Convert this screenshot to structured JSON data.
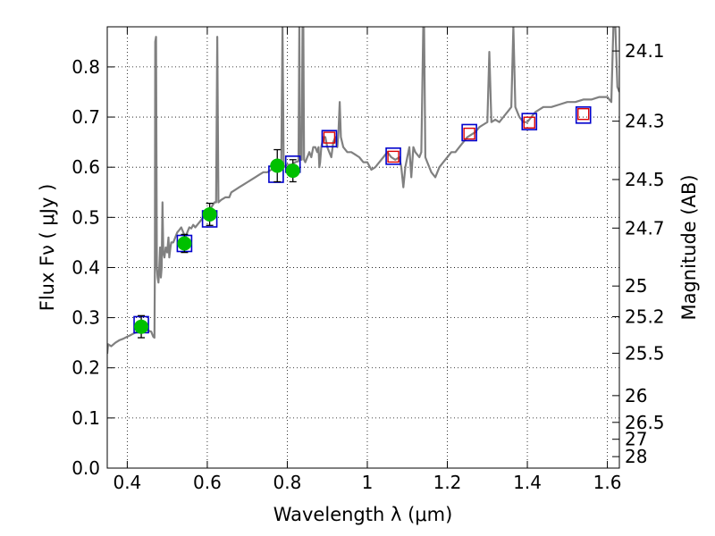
{
  "chart_data": {
    "type": "scatter",
    "xlabel": "Wavelength  λ (μm)",
    "ylabel": "Flux  Fν  ( μJy )",
    "y2label": "Magnitude (AB)",
    "xlim": [
      0.35,
      1.63
    ],
    "ylim": [
      0.0,
      0.88
    ],
    "grid": true,
    "x_ticks": [
      0.4,
      0.6,
      0.8,
      1.0,
      1.2,
      1.4,
      1.6
    ],
    "x_tick_labels": [
      "0.4",
      "0.6",
      "0.8",
      "1",
      "1.2",
      "1.4",
      "1.6"
    ],
    "y_ticks": [
      0.0,
      0.1,
      0.2,
      0.3,
      0.4,
      0.5,
      0.6,
      0.7,
      0.8
    ],
    "y_tick_labels": [
      "0.0",
      "0.1",
      "0.2",
      "0.3",
      "0.4",
      "0.5",
      "0.6",
      "0.7",
      "0.8"
    ],
    "mag_ticks": [
      24.1,
      24.3,
      24.5,
      24.7,
      25,
      25.2,
      25.5,
      26,
      26.5,
      27,
      28
    ],
    "mag_tick_labels": [
      "24.1",
      "24.3",
      "24.5",
      "24.7",
      "25",
      "25.2",
      "25.5",
      "26",
      "26.5",
      "27",
      "28"
    ],
    "colors": {
      "model": "#808080",
      "observed": "#00c000",
      "model_photometry": "#0000cc",
      "predicted": "#dd0000",
      "errorbar": "#000000"
    },
    "observed": [
      {
        "x": 0.435,
        "y": 0.282,
        "err": 0.022
      },
      {
        "x": 0.543,
        "y": 0.448,
        "err": 0.018
      },
      {
        "x": 0.606,
        "y": 0.506,
        "err": 0.022
      },
      {
        "x": 0.775,
        "y": 0.603,
        "err": 0.032
      },
      {
        "x": 0.814,
        "y": 0.593,
        "err": 0.022
      }
    ],
    "model_photometry": [
      {
        "x": 0.435,
        "y": 0.286
      },
      {
        "x": 0.543,
        "y": 0.448
      },
      {
        "x": 0.606,
        "y": 0.497
      },
      {
        "x": 0.772,
        "y": 0.586
      },
      {
        "x": 0.814,
        "y": 0.606
      },
      {
        "x": 0.905,
        "y": 0.657
      },
      {
        "x": 1.065,
        "y": 0.622
      },
      {
        "x": 1.255,
        "y": 0.669
      },
      {
        "x": 1.405,
        "y": 0.691
      },
      {
        "x": 1.54,
        "y": 0.704
      }
    ],
    "predicted": [
      {
        "x": 0.905,
        "y": 0.659
      },
      {
        "x": 1.065,
        "y": 0.621
      },
      {
        "x": 1.255,
        "y": 0.667
      },
      {
        "x": 1.405,
        "y": 0.689
      },
      {
        "x": 1.54,
        "y": 0.706
      }
    ],
    "model_spectrum": [
      [
        0.35,
        0.228
      ],
      [
        0.352,
        0.247
      ],
      [
        0.36,
        0.243
      ],
      [
        0.37,
        0.25
      ],
      [
        0.38,
        0.255
      ],
      [
        0.39,
        0.258
      ],
      [
        0.4,
        0.262
      ],
      [
        0.41,
        0.266
      ],
      [
        0.42,
        0.27
      ],
      [
        0.43,
        0.272
      ],
      [
        0.44,
        0.274
      ],
      [
        0.45,
        0.275
      ],
      [
        0.46,
        0.272
      ],
      [
        0.465,
        0.262
      ],
      [
        0.468,
        0.26
      ],
      [
        0.469,
        0.4
      ],
      [
        0.47,
        0.85
      ],
      [
        0.472,
        0.86
      ],
      [
        0.474,
        0.4
      ],
      [
        0.476,
        0.38
      ],
      [
        0.478,
        0.37
      ],
      [
        0.48,
        0.4
      ],
      [
        0.482,
        0.44
      ],
      [
        0.484,
        0.38
      ],
      [
        0.486,
        0.4
      ],
      [
        0.488,
        0.53
      ],
      [
        0.49,
        0.43
      ],
      [
        0.493,
        0.42
      ],
      [
        0.496,
        0.44
      ],
      [
        0.5,
        0.43
      ],
      [
        0.503,
        0.46
      ],
      [
        0.505,
        0.42
      ],
      [
        0.508,
        0.44
      ],
      [
        0.51,
        0.45
      ],
      [
        0.515,
        0.45
      ],
      [
        0.52,
        0.46
      ],
      [
        0.525,
        0.47
      ],
      [
        0.53,
        0.475
      ],
      [
        0.535,
        0.48
      ],
      [
        0.54,
        0.47
      ],
      [
        0.545,
        0.46
      ],
      [
        0.55,
        0.47
      ],
      [
        0.555,
        0.48
      ],
      [
        0.56,
        0.478
      ],
      [
        0.565,
        0.485
      ],
      [
        0.57,
        0.48
      ],
      [
        0.58,
        0.49
      ],
      [
        0.59,
        0.5
      ],
      [
        0.6,
        0.51
      ],
      [
        0.61,
        0.52
      ],
      [
        0.618,
        0.53
      ],
      [
        0.622,
        0.53
      ],
      [
        0.625,
        0.86
      ],
      [
        0.628,
        0.53
      ],
      [
        0.635,
        0.535
      ],
      [
        0.645,
        0.54
      ],
      [
        0.655,
        0.54
      ],
      [
        0.66,
        0.55
      ],
      [
        0.67,
        0.555
      ],
      [
        0.68,
        0.56
      ],
      [
        0.69,
        0.565
      ],
      [
        0.7,
        0.57
      ],
      [
        0.71,
        0.575
      ],
      [
        0.72,
        0.58
      ],
      [
        0.73,
        0.585
      ],
      [
        0.74,
        0.59
      ],
      [
        0.75,
        0.59
      ],
      [
        0.76,
        0.595
      ],
      [
        0.77,
        0.6
      ],
      [
        0.78,
        0.6
      ],
      [
        0.785,
        0.6
      ],
      [
        0.788,
        0.88
      ],
      [
        0.791,
        0.6
      ],
      [
        0.8,
        0.605
      ],
      [
        0.81,
        0.605
      ],
      [
        0.82,
        0.61
      ],
      [
        0.828,
        0.612
      ],
      [
        0.83,
        0.88
      ],
      [
        0.832,
        0.615
      ],
      [
        0.836,
        0.615
      ],
      [
        0.838,
        0.88
      ],
      [
        0.84,
        0.88
      ],
      [
        0.842,
        0.615
      ],
      [
        0.845,
        0.61
      ],
      [
        0.85,
        0.62
      ],
      [
        0.855,
        0.63
      ],
      [
        0.86,
        0.62
      ],
      [
        0.865,
        0.64
      ],
      [
        0.87,
        0.64
      ],
      [
        0.875,
        0.63
      ],
      [
        0.878,
        0.64
      ],
      [
        0.88,
        0.6
      ],
      [
        0.882,
        0.61
      ],
      [
        0.885,
        0.64
      ],
      [
        0.89,
        0.66
      ],
      [
        0.895,
        0.66
      ],
      [
        0.9,
        0.64
      ],
      [
        0.905,
        0.63
      ],
      [
        0.91,
        0.62
      ],
      [
        0.915,
        0.65
      ],
      [
        0.92,
        0.66
      ],
      [
        0.925,
        0.64
      ],
      [
        0.928,
        0.67
      ],
      [
        0.931,
        0.73
      ],
      [
        0.934,
        0.66
      ],
      [
        0.94,
        0.64
      ],
      [
        0.95,
        0.63
      ],
      [
        0.96,
        0.63
      ],
      [
        0.97,
        0.625
      ],
      [
        0.98,
        0.62
      ],
      [
        0.99,
        0.61
      ],
      [
        1.0,
        0.61
      ],
      [
        1.01,
        0.595
      ],
      [
        1.02,
        0.6
      ],
      [
        1.03,
        0.61
      ],
      [
        1.04,
        0.62
      ],
      [
        1.05,
        0.63
      ],
      [
        1.06,
        0.62
      ],
      [
        1.07,
        0.615
      ],
      [
        1.08,
        0.62
      ],
      [
        1.085,
        0.6
      ],
      [
        1.09,
        0.56
      ],
      [
        1.095,
        0.6
      ],
      [
        1.1,
        0.62
      ],
      [
        1.105,
        0.64
      ],
      [
        1.11,
        0.58
      ],
      [
        1.115,
        0.64
      ],
      [
        1.12,
        0.63
      ],
      [
        1.13,
        0.62
      ],
      [
        1.135,
        0.63
      ],
      [
        1.14,
        0.88
      ],
      [
        1.142,
        0.88
      ],
      [
        1.145,
        0.62
      ],
      [
        1.15,
        0.61
      ],
      [
        1.16,
        0.59
      ],
      [
        1.17,
        0.58
      ],
      [
        1.18,
        0.6
      ],
      [
        1.19,
        0.61
      ],
      [
        1.2,
        0.62
      ],
      [
        1.21,
        0.63
      ],
      [
        1.22,
        0.63
      ],
      [
        1.23,
        0.64
      ],
      [
        1.24,
        0.65
      ],
      [
        1.25,
        0.66
      ],
      [
        1.26,
        0.665
      ],
      [
        1.27,
        0.67
      ],
      [
        1.28,
        0.68
      ],
      [
        1.29,
        0.685
      ],
      [
        1.3,
        0.69
      ],
      [
        1.305,
        0.83
      ],
      [
        1.31,
        0.69
      ],
      [
        1.32,
        0.695
      ],
      [
        1.33,
        0.69
      ],
      [
        1.34,
        0.7
      ],
      [
        1.35,
        0.71
      ],
      [
        1.36,
        0.72
      ],
      [
        1.365,
        0.88
      ],
      [
        1.37,
        0.72
      ],
      [
        1.38,
        0.7
      ],
      [
        1.39,
        0.69
      ],
      [
        1.4,
        0.69
      ],
      [
        1.41,
        0.7
      ],
      [
        1.42,
        0.71
      ],
      [
        1.44,
        0.72
      ],
      [
        1.46,
        0.72
      ],
      [
        1.48,
        0.725
      ],
      [
        1.5,
        0.73
      ],
      [
        1.52,
        0.73
      ],
      [
        1.54,
        0.735
      ],
      [
        1.56,
        0.735
      ],
      [
        1.58,
        0.74
      ],
      [
        1.6,
        0.74
      ],
      [
        1.61,
        0.73
      ],
      [
        1.615,
        0.88
      ],
      [
        1.62,
        0.88
      ],
      [
        1.625,
        0.76
      ],
      [
        1.63,
        0.75
      ]
    ]
  }
}
